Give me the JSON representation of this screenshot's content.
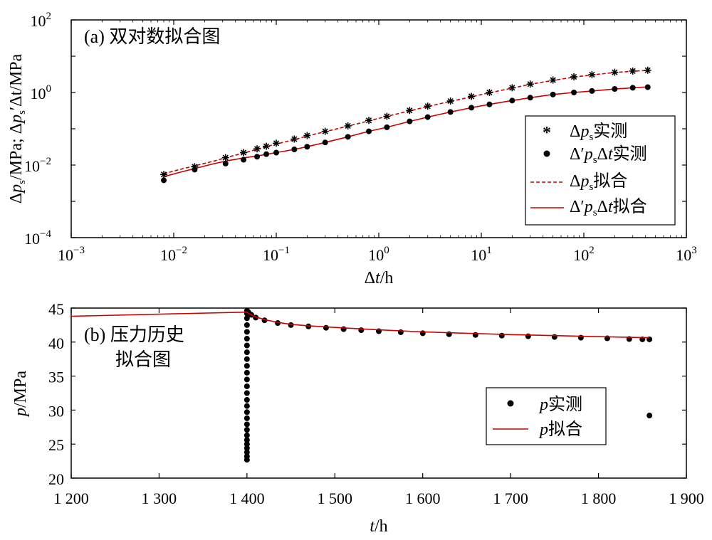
{
  "chart_data": [
    {
      "id": "a",
      "type": "scatter",
      "title": "(a) 双对数拟合图",
      "xlabel": "Δt/h",
      "ylabel": "Δps/MPa; Δps'Δt/MPa",
      "xscale": "log",
      "yscale": "log",
      "xlim": [
        0.001,
        1000
      ],
      "ylim": [
        0.0001,
        100
      ],
      "x_ticks": [
        "10^-3",
        "10^-2",
        "10^-1",
        "10^0",
        "10^1",
        "10^2",
        "10^3"
      ],
      "y_ticks": [
        "10^-4",
        "10^-2",
        "10^0",
        "10^2"
      ],
      "legend_position": "lower-right",
      "series": [
        {
          "name": "Δps实测",
          "style": "star-marker",
          "color": "#000000",
          "x": [
            0.008,
            0.016,
            0.032,
            0.048,
            0.065,
            0.08,
            0.1,
            0.15,
            0.2,
            0.3,
            0.5,
            0.8,
            1.2,
            2,
            3,
            5,
            8,
            12,
            20,
            30,
            50,
            80,
            120,
            200,
            300,
            420
          ],
          "y": [
            0.0055,
            0.009,
            0.016,
            0.022,
            0.028,
            0.033,
            0.04,
            0.052,
            0.065,
            0.085,
            0.12,
            0.17,
            0.22,
            0.32,
            0.42,
            0.58,
            0.78,
            1.0,
            1.35,
            1.7,
            2.2,
            2.7,
            3.1,
            3.6,
            3.9,
            4.1
          ]
        },
        {
          "name": "Δ'psΔt实测",
          "style": "dot-marker",
          "color": "#000000",
          "x": [
            0.008,
            0.016,
            0.032,
            0.048,
            0.065,
            0.08,
            0.1,
            0.15,
            0.2,
            0.3,
            0.5,
            0.8,
            1.2,
            2,
            3,
            5,
            8,
            12,
            20,
            30,
            50,
            80,
            120,
            200,
            300,
            420
          ],
          "y": [
            0.0038,
            0.0075,
            0.011,
            0.014,
            0.017,
            0.02,
            0.022,
            0.027,
            0.032,
            0.042,
            0.06,
            0.085,
            0.11,
            0.16,
            0.21,
            0.29,
            0.38,
            0.47,
            0.6,
            0.72,
            0.88,
            1.0,
            1.1,
            1.25,
            1.35,
            1.4
          ]
        },
        {
          "name": "Δps拟合",
          "style": "dashed-line",
          "color": "#cc0000",
          "x": [
            0.008,
            0.012,
            0.016,
            0.025,
            0.035,
            0.05,
            0.07,
            0.1,
            0.15,
            0.2,
            0.3,
            0.5,
            0.8,
            1.2,
            2,
            3,
            5,
            8,
            12,
            20,
            30,
            50,
            80,
            120,
            200,
            300,
            420
          ],
          "y": [
            0.0058,
            0.0078,
            0.0095,
            0.013,
            0.017,
            0.022,
            0.029,
            0.038,
            0.05,
            0.063,
            0.083,
            0.118,
            0.165,
            0.22,
            0.31,
            0.41,
            0.57,
            0.76,
            0.98,
            1.32,
            1.68,
            2.15,
            2.65,
            3.05,
            3.55,
            3.85,
            4.05
          ]
        },
        {
          "name": "Δ'psΔt拟合",
          "style": "solid-line",
          "color": "#cc0000",
          "x": [
            0.008,
            0.012,
            0.016,
            0.025,
            0.035,
            0.05,
            0.07,
            0.1,
            0.15,
            0.2,
            0.3,
            0.5,
            0.8,
            1.2,
            2,
            3,
            5,
            8,
            12,
            20,
            30,
            50,
            80,
            120,
            200,
            300,
            420
          ],
          "y": [
            0.0048,
            0.0065,
            0.008,
            0.011,
            0.0135,
            0.016,
            0.0185,
            0.022,
            0.027,
            0.032,
            0.042,
            0.06,
            0.085,
            0.11,
            0.16,
            0.21,
            0.29,
            0.38,
            0.47,
            0.6,
            0.72,
            0.88,
            1.0,
            1.1,
            1.25,
            1.35,
            1.42
          ]
        }
      ]
    },
    {
      "id": "b",
      "type": "scatter",
      "title_lines": [
        "(b) 压力历史",
        "拟合图"
      ],
      "xlabel": "t/h",
      "ylabel": "p/MPa",
      "xlim": [
        1200,
        1900
      ],
      "ylim": [
        20,
        45
      ],
      "x_ticks": [
        1200,
        1300,
        1400,
        1500,
        1600,
        1700,
        1800,
        1900
      ],
      "x_tick_labels": [
        "1 200",
        "1 300",
        "1 400",
        "1 500",
        "1 600",
        "1 700",
        "1 800",
        "1 900"
      ],
      "y_ticks": [
        20,
        25,
        30,
        35,
        40,
        45
      ],
      "legend_position": "lower-right",
      "series": [
        {
          "name": "p实测",
          "style": "dot-marker",
          "color": "#000000",
          "x": [
            1400,
            1400,
            1400,
            1400,
            1400,
            1400,
            1400,
            1400,
            1400,
            1400,
            1400,
            1400,
            1400,
            1400,
            1400,
            1400,
            1400,
            1400,
            1400,
            1400,
            1400,
            1400,
            1400,
            1400,
            1400,
            1400,
            1400,
            1401,
            1402,
            1405,
            1410,
            1420,
            1435,
            1450,
            1470,
            1490,
            1510,
            1530,
            1550,
            1575,
            1600,
            1630,
            1660,
            1690,
            1720,
            1750,
            1780,
            1810,
            1835,
            1850,
            1858,
            1858
          ],
          "y": [
            22.7,
            23.2,
            23.8,
            24.4,
            25.0,
            25.6,
            26.3,
            27.1,
            27.9,
            28.8,
            29.7,
            30.6,
            31.5,
            32.5,
            33.5,
            34.5,
            35.5,
            36.5,
            37.5,
            38.5,
            39.5,
            40.5,
            41.5,
            42.5,
            43.5,
            44.2,
            44.6,
            44.5,
            44.3,
            44.0,
            43.6,
            43.2,
            42.8,
            42.5,
            42.3,
            42.1,
            41.9,
            41.75,
            41.6,
            41.45,
            41.3,
            41.15,
            41.05,
            40.95,
            40.85,
            40.75,
            40.65,
            40.55,
            40.45,
            40.4,
            40.4,
            29.2
          ]
        },
        {
          "name": "p拟合",
          "style": "solid-line",
          "color": "#cc0000",
          "x": [
            1200,
            1400,
            1401,
            1405,
            1410,
            1420,
            1435,
            1450,
            1470,
            1500,
            1550,
            1600,
            1650,
            1700,
            1750,
            1800,
            1858
          ],
          "y": [
            43.8,
            44.4,
            44.3,
            44.0,
            43.7,
            43.3,
            42.9,
            42.6,
            42.4,
            42.15,
            41.8,
            41.5,
            41.3,
            41.1,
            40.95,
            40.8,
            40.65
          ]
        }
      ]
    }
  ]
}
